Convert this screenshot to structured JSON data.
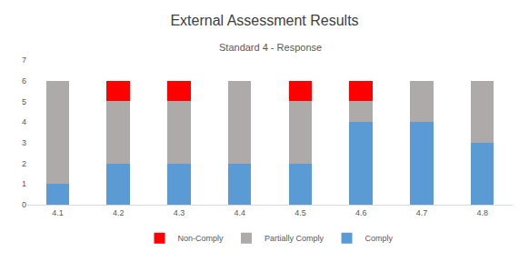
{
  "chart_data": {
    "type": "bar",
    "title": "External Assessment Results",
    "subtitle": "Standard 4 - Response",
    "categories": [
      "4.1",
      "4.2",
      "4.3",
      "4.4",
      "4.5",
      "4.6",
      "4.7",
      "4.8"
    ],
    "series": [
      {
        "name": "Comply",
        "color": "#5b9bd5",
        "values": [
          1,
          2,
          2,
          2,
          2,
          4,
          4,
          3
        ]
      },
      {
        "name": "Partially Comply",
        "color": "#aeaaaa",
        "values": [
          5,
          3,
          3,
          4,
          3,
          1,
          2,
          3
        ]
      },
      {
        "name": "Non-Comply",
        "color": "#ff0000",
        "values": [
          0,
          1,
          1,
          0,
          1,
          1,
          0,
          0
        ]
      }
    ],
    "stacked": true,
    "ylim": [
      0,
      7
    ],
    "yticks": [
      0,
      1,
      2,
      3,
      4,
      5,
      6,
      7
    ],
    "grid": false,
    "legend": "bottom"
  }
}
